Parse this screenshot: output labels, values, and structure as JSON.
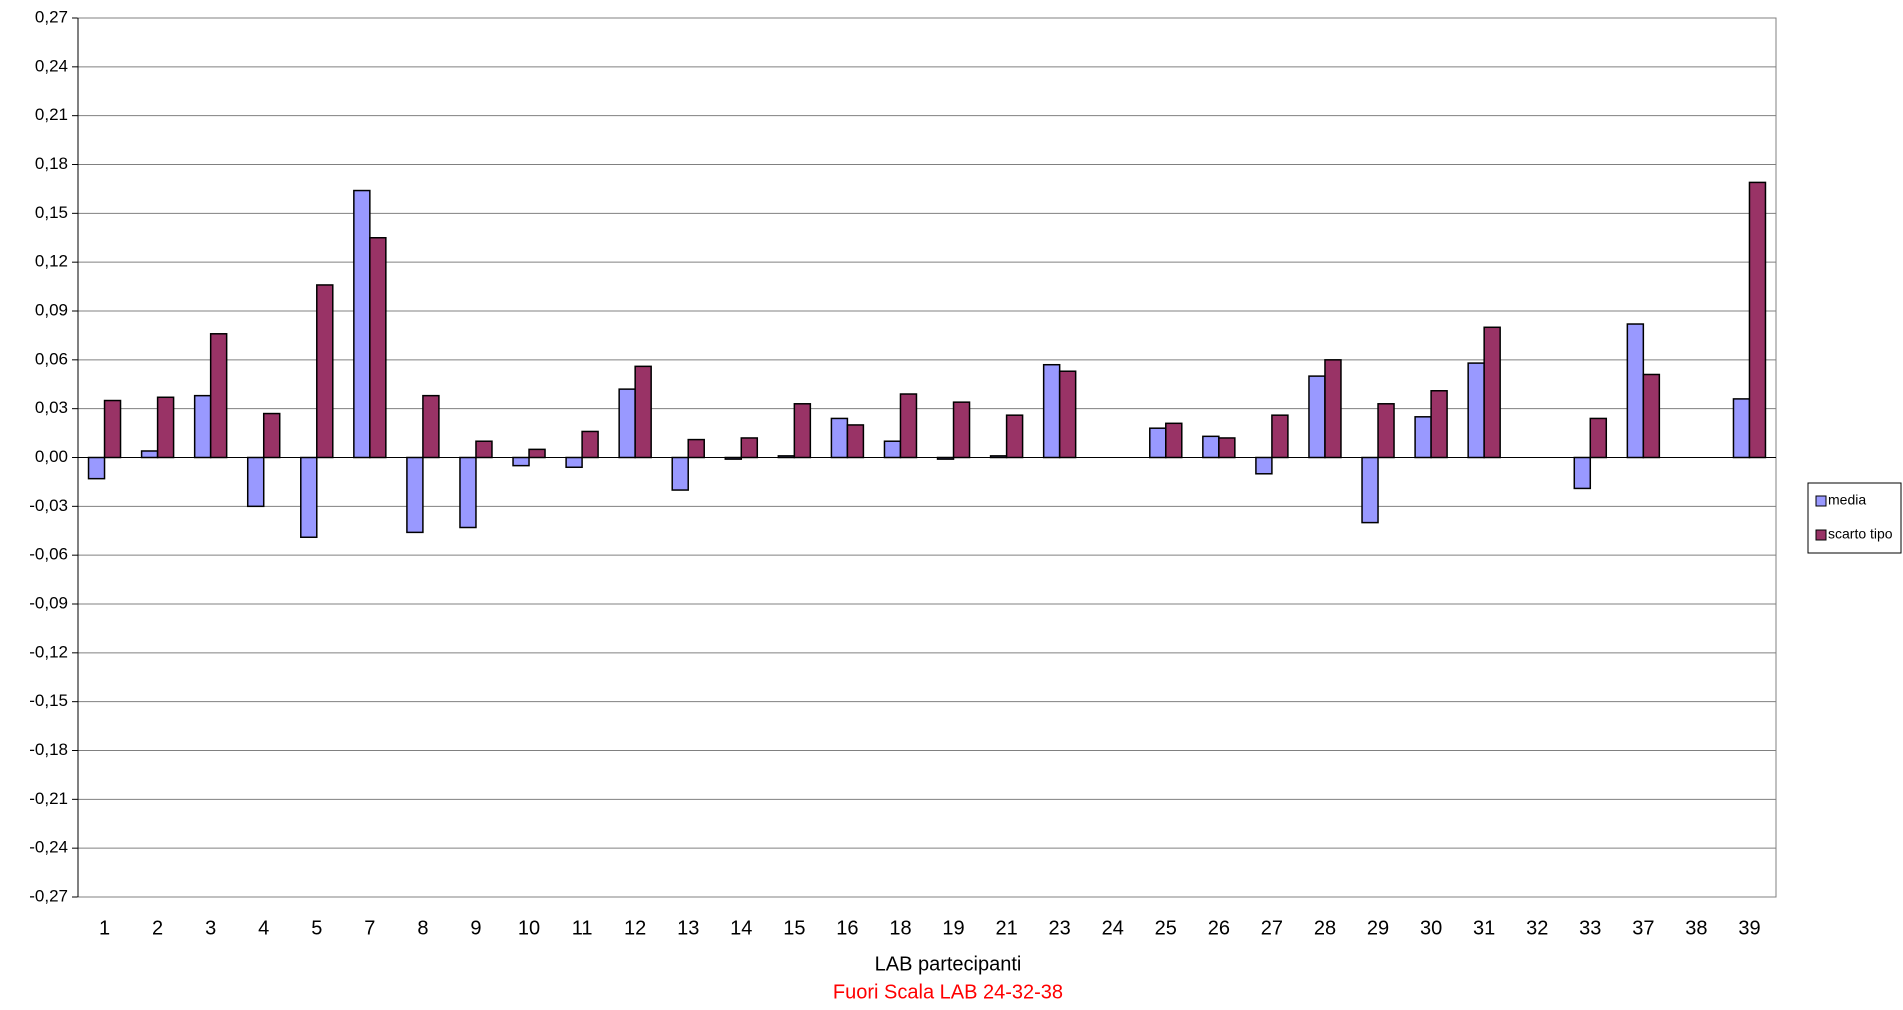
{
  "chart_data": {
    "type": "bar",
    "x_label": "LAB partecipanti",
    "annotation": "Fuori Scala LAB 24-32-38",
    "categories": [
      "1",
      "2",
      "3",
      "4",
      "5",
      "7",
      "8",
      "9",
      "10",
      "11",
      "12",
      "13",
      "14",
      "15",
      "16",
      "18",
      "19",
      "21",
      "23",
      "24",
      "25",
      "26",
      "27",
      "28",
      "29",
      "30",
      "31",
      "32",
      "33",
      "37",
      "38",
      "39"
    ],
    "series": [
      {
        "name": "media",
        "color": "#9999ff",
        "values": [
          -0.013,
          0.004,
          0.038,
          -0.03,
          -0.049,
          0.164,
          -0.046,
          -0.043,
          -0.005,
          -0.006,
          0.042,
          -0.02,
          -0.001,
          0.001,
          0.024,
          0.01,
          -0.001,
          0.001,
          0.057,
          null,
          0.018,
          0.013,
          -0.01,
          0.05,
          -0.04,
          0.025,
          0.058,
          null,
          -0.019,
          0.082,
          null,
          0.036
        ]
      },
      {
        "name": "scarto tipo",
        "color": "#993366",
        "values": [
          0.035,
          0.037,
          0.076,
          0.027,
          0.106,
          0.135,
          0.038,
          0.01,
          0.005,
          0.016,
          0.056,
          0.011,
          0.012,
          0.033,
          0.02,
          0.039,
          0.034,
          0.026,
          0.053,
          null,
          0.021,
          0.012,
          0.026,
          0.06,
          0.033,
          0.041,
          0.08,
          null,
          0.024,
          0.051,
          null,
          0.169
        ]
      }
    ],
    "ylim": [
      -0.27,
      0.27
    ],
    "yticks": [
      {
        "value": -0.27,
        "label": "-0,27"
      },
      {
        "value": -0.24,
        "label": "-0,24"
      },
      {
        "value": -0.21,
        "label": "-0,21"
      },
      {
        "value": -0.18,
        "label": "-0,18"
      },
      {
        "value": -0.15,
        "label": "-0,15"
      },
      {
        "value": -0.12,
        "label": "-0,12"
      },
      {
        "value": -0.09,
        "label": "-0,09"
      },
      {
        "value": -0.06,
        "label": "-0,06"
      },
      {
        "value": -0.03,
        "label": "-0,03"
      },
      {
        "value": 0,
        "label": "0,00"
      },
      {
        "value": 0.03,
        "label": "0,03"
      },
      {
        "value": 0.06,
        "label": "0,06"
      },
      {
        "value": 0.09,
        "label": "0,09"
      },
      {
        "value": 0.12,
        "label": "0,12"
      },
      {
        "value": 0.15,
        "label": "0,15"
      },
      {
        "value": 0.18,
        "label": "0,18"
      },
      {
        "value": 0.21,
        "label": "0,21"
      },
      {
        "value": 0.24,
        "label": "0,24"
      },
      {
        "value": 0.27,
        "label": "0,27"
      }
    ],
    "grid": true,
    "legend": "right"
  }
}
